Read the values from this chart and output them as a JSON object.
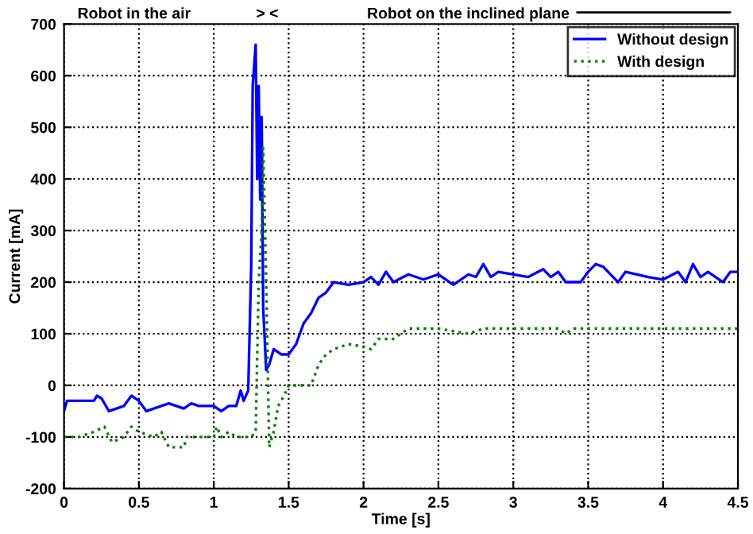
{
  "chart_data": {
    "type": "line",
    "xlabel": "Time [s]",
    "ylabel": "Current [mA]",
    "annotations": [
      "Robot in the air",
      "> <",
      "Robot on the inclined plane"
    ],
    "xlim": [
      0,
      4.5
    ],
    "xticks": [
      0,
      0.5,
      1,
      1.5,
      2,
      2.5,
      3,
      3.5,
      4,
      4.5
    ],
    "ylim": [
      -200,
      700
    ],
    "yticks": [
      -200,
      -100,
      0,
      100,
      200,
      300,
      400,
      500,
      600,
      700
    ],
    "grid": true,
    "legend": "top right",
    "series": [
      {
        "name": "Without design",
        "color": "#0000ff",
        "line_style": "solid",
        "x": [
          0,
          0.02,
          0.2,
          0.22,
          0.25,
          0.3,
          0.4,
          0.45,
          0.5,
          0.55,
          0.65,
          0.7,
          0.75,
          0.8,
          0.85,
          0.9,
          1.0,
          1.05,
          1.1,
          1.15,
          1.18,
          1.2,
          1.23,
          1.25,
          1.26,
          1.27,
          1.28,
          1.29,
          1.3,
          1.31,
          1.32,
          1.33,
          1.35,
          1.37,
          1.4,
          1.45,
          1.5,
          1.55,
          1.6,
          1.65,
          1.7,
          1.75,
          1.8,
          1.9,
          2.0,
          2.05,
          2.1,
          2.15,
          2.2,
          2.3,
          2.4,
          2.5,
          2.6,
          2.7,
          2.75,
          2.8,
          2.85,
          2.9,
          3.0,
          3.1,
          3.2,
          3.25,
          3.3,
          3.35,
          3.45,
          3.5,
          3.55,
          3.6,
          3.7,
          3.75,
          3.9,
          4.0,
          4.1,
          4.15,
          4.2,
          4.25,
          4.3,
          4.4,
          4.45,
          4.5
        ],
        "values": [
          -50,
          -30,
          -30,
          -20,
          -25,
          -50,
          -40,
          -20,
          -30,
          -50,
          -40,
          -35,
          -40,
          -45,
          -35,
          -40,
          -40,
          -50,
          -40,
          -40,
          -10,
          -30,
          -10,
          230,
          580,
          620,
          660,
          400,
          580,
          360,
          520,
          150,
          30,
          40,
          70,
          60,
          60,
          80,
          120,
          140,
          170,
          180,
          200,
          195,
          200,
          210,
          195,
          220,
          200,
          215,
          205,
          215,
          195,
          215,
          210,
          235,
          210,
          220,
          215,
          210,
          225,
          210,
          220,
          200,
          200,
          220,
          235,
          230,
          200,
          220,
          210,
          205,
          220,
          200,
          235,
          210,
          220,
          200,
          220,
          220
        ]
      },
      {
        "name": "With design",
        "color": "#008000",
        "line_style": "dotted",
        "x": [
          0,
          0.1,
          0.2,
          0.27,
          0.32,
          0.4,
          0.45,
          0.5,
          0.6,
          0.65,
          0.7,
          0.8,
          0.82,
          1.0,
          1.02,
          1.05,
          1.1,
          1.15,
          1.25,
          1.28,
          1.3,
          1.32,
          1.33,
          1.35,
          1.37,
          1.4,
          1.43,
          1.47,
          1.5,
          1.55,
          1.65,
          1.7,
          1.75,
          1.8,
          1.9,
          2.0,
          2.05,
          2.1,
          2.2,
          2.3,
          2.5,
          2.7,
          2.8,
          3.0,
          3.3,
          3.35,
          3.4,
          4.5
        ],
        "values": [
          -100,
          -100,
          -90,
          -80,
          -110,
          -100,
          -80,
          -90,
          -100,
          -90,
          -120,
          -120,
          -100,
          -100,
          -80,
          -100,
          -90,
          -100,
          -100,
          -90,
          200,
          300,
          460,
          200,
          -120,
          -90,
          -40,
          -20,
          0,
          0,
          0,
          40,
          60,
          70,
          80,
          75,
          70,
          90,
          90,
          110,
          110,
          100,
          110,
          110,
          110,
          100,
          110,
          110
        ]
      }
    ]
  }
}
